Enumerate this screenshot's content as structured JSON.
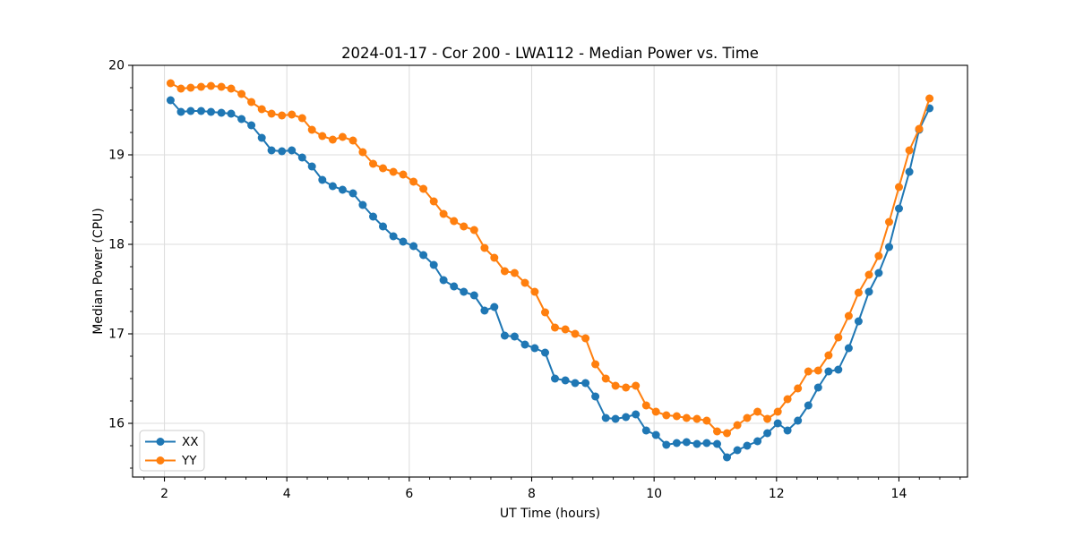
{
  "chart_data": {
    "type": "line",
    "title": "2024-01-17 - Cor 200 - LWA112 - Median Power vs. Time",
    "xlabel": "UT Time (hours)",
    "ylabel": "Median Power (CPU)",
    "xlim": [
      1.48,
      15.12
    ],
    "ylim": [
      15.4,
      20.0
    ],
    "xticks": [
      2,
      4,
      6,
      8,
      10,
      12,
      14
    ],
    "yticks": [
      16,
      17,
      18,
      19,
      20
    ],
    "x_minor_step": 0.3333333,
    "y_minor_step": 0.25,
    "grid": true,
    "grid_color": "#dedede",
    "legend_position": "lower left",
    "marker": "circle",
    "x": [
      2.1,
      2.27,
      2.43,
      2.6,
      2.76,
      2.93,
      3.09,
      3.26,
      3.42,
      3.59,
      3.75,
      3.92,
      4.08,
      4.25,
      4.41,
      4.58,
      4.75,
      4.91,
      5.08,
      5.24,
      5.41,
      5.57,
      5.74,
      5.9,
      6.07,
      6.23,
      6.4,
      6.56,
      6.73,
      6.89,
      7.06,
      7.23,
      7.39,
      7.56,
      7.72,
      7.89,
      8.05,
      8.22,
      8.38,
      8.55,
      8.71,
      8.88,
      9.04,
      9.21,
      9.37,
      9.54,
      9.7,
      9.87,
      10.03,
      10.2,
      10.37,
      10.53,
      10.7,
      10.86,
      11.03,
      11.19,
      11.36,
      11.52,
      11.69,
      11.85,
      12.02,
      12.18,
      12.35,
      12.52,
      12.68,
      12.85,
      13.01,
      13.18,
      13.34,
      13.51,
      13.67,
      13.84,
      14.0,
      14.17,
      14.33,
      14.5
    ],
    "series": [
      {
        "name": "XX",
        "color": "#1f77b4",
        "values": [
          19.61,
          19.48,
          19.49,
          19.49,
          19.48,
          19.47,
          19.46,
          19.4,
          19.33,
          19.19,
          19.05,
          19.04,
          19.05,
          18.97,
          18.87,
          18.72,
          18.65,
          18.61,
          18.57,
          18.44,
          18.31,
          18.2,
          18.09,
          18.03,
          17.98,
          17.88,
          17.77,
          17.6,
          17.53,
          17.47,
          17.43,
          17.26,
          17.3,
          16.98,
          16.97,
          16.88,
          16.84,
          16.79,
          16.5,
          16.48,
          16.45,
          16.45,
          16.3,
          16.06,
          16.05,
          16.07,
          16.1,
          15.92,
          15.87,
          15.76,
          15.78,
          15.79,
          15.77,
          15.78,
          15.77,
          15.62,
          15.7,
          15.75,
          15.8,
          15.89,
          16.0,
          15.92,
          16.03,
          16.2,
          16.4,
          16.58,
          16.6,
          16.84,
          17.14,
          17.47,
          17.68,
          17.97,
          18.4,
          18.81,
          19.28,
          19.52
        ]
      },
      {
        "name": "YY",
        "color": "#ff7f0e",
        "values": [
          19.8,
          19.74,
          19.75,
          19.76,
          19.77,
          19.76,
          19.74,
          19.68,
          19.59,
          19.51,
          19.46,
          19.44,
          19.45,
          19.41,
          19.28,
          19.21,
          19.17,
          19.2,
          19.16,
          19.03,
          18.9,
          18.85,
          18.81,
          18.78,
          18.7,
          18.62,
          18.48,
          18.34,
          18.26,
          18.2,
          18.16,
          17.96,
          17.85,
          17.7,
          17.68,
          17.57,
          17.47,
          17.24,
          17.07,
          17.05,
          17.0,
          16.95,
          16.66,
          16.5,
          16.42,
          16.4,
          16.42,
          16.2,
          16.13,
          16.09,
          16.08,
          16.06,
          16.05,
          16.03,
          15.91,
          15.89,
          15.98,
          16.06,
          16.13,
          16.05,
          16.13,
          16.27,
          16.39,
          16.58,
          16.59,
          16.76,
          16.96,
          17.2,
          17.46,
          17.66,
          17.87,
          18.25,
          18.64,
          19.05,
          19.29,
          19.63
        ]
      }
    ]
  }
}
